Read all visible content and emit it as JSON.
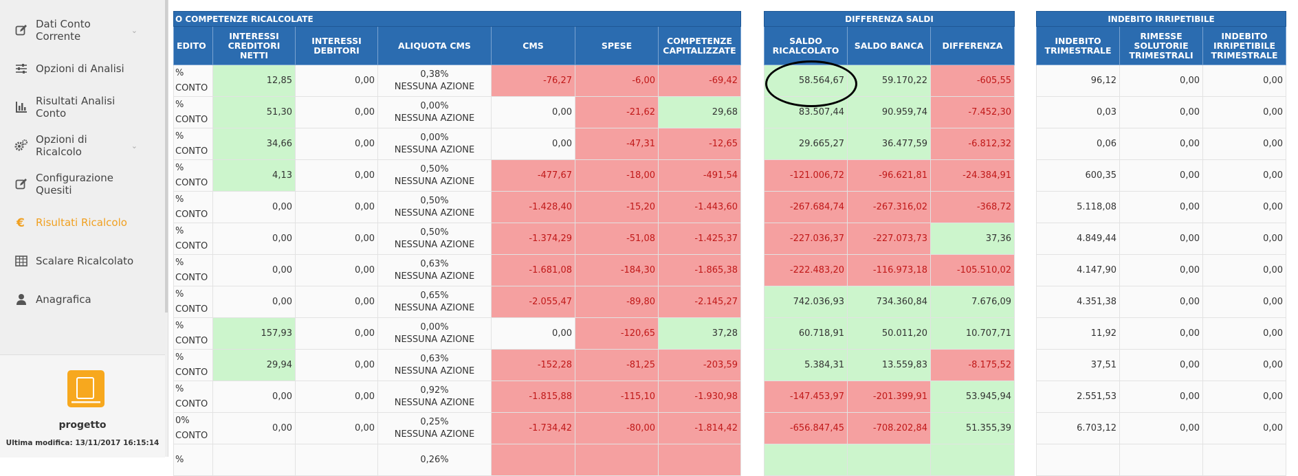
{
  "sidebar": {
    "items": [
      {
        "label": "Dati Conto Corrente",
        "icon": "edit-icon",
        "chevron": "⌄",
        "active": false
      },
      {
        "label": "Opzioni di Analisi",
        "icon": "sliders-icon",
        "chevron": "",
        "active": false
      },
      {
        "label": "Risultati Analisi Conto",
        "icon": "bar-chart-icon",
        "chevron": "",
        "active": false
      },
      {
        "label": "Opzioni di Ricalcolo",
        "icon": "gears-icon",
        "chevron": "⌄",
        "active": false
      },
      {
        "label": "Configurazione Quesiti",
        "icon": "edit-icon",
        "chevron": "",
        "active": false
      },
      {
        "label": "Risultati Ricalcolo",
        "icon": "euro-icon",
        "chevron": "",
        "active": true
      },
      {
        "label": "Scalare Ricalcolato",
        "icon": "table-icon",
        "chevron": "",
        "active": false
      },
      {
        "label": "Anagrafica",
        "icon": "user-icon",
        "chevron": "",
        "active": false
      }
    ],
    "project": {
      "name": "progetto",
      "last_modified": "Ultima modifica: 13/11/2017 16:15:14"
    }
  },
  "tables": {
    "competenze": {
      "band": "O COMPETENZE RICALCOLATE",
      "headers": [
        "EDITO",
        "INTERESSI CREDITORI NETTI",
        "INTERESSI DEBITORI",
        "ALIQUOTA CMS",
        "CMS",
        "SPESE",
        "COMPETENZE CAPITALIZZATE"
      ]
    },
    "differenza": {
      "band": "DIFFERENZA SALDI",
      "headers": [
        "SALDO RICALCOLATO",
        "SALDO BANCA",
        "DIFFERENZA"
      ]
    },
    "indebito": {
      "band": "INDEBITO IRRIPETIBILE",
      "headers": [
        "INDEBITO TRIMESTRALE",
        "RIMESSE SOLUTORIE TRIMESTRALI",
        "INDEBITO IRRIPETIBILE TRIMESTRALE"
      ]
    }
  },
  "rows": [
    {
      "p1": "%",
      "p2": "CONTO",
      "icn": "12,85",
      "icd": "0,00",
      "aliq": "0,38%",
      "az": "NESSUNA AZIONE",
      "cms": "-76,27",
      "spese": "-6,00",
      "comp": "-69,42",
      "saldo_r": "58.564,67",
      "saldo_b": "59.170,22",
      "diff": "-605,55",
      "ind": "96,12",
      "rim": "0,00",
      "irr": "0,00"
    },
    {
      "p1": "%",
      "p2": "CONTO",
      "icn": "51,30",
      "icd": "0,00",
      "aliq": "0,00%",
      "az": "NESSUNA AZIONE",
      "cms": "0,00",
      "spese": "-21,62",
      "comp": "29,68",
      "saldo_r": "83.507,44",
      "saldo_b": "90.959,74",
      "diff": "-7.452,30",
      "ind": "0,03",
      "rim": "0,00",
      "irr": "0,00"
    },
    {
      "p1": "%",
      "p2": "CONTO",
      "icn": "34,66",
      "icd": "0,00",
      "aliq": "0,00%",
      "az": "NESSUNA AZIONE",
      "cms": "0,00",
      "spese": "-47,31",
      "comp": "-12,65",
      "saldo_r": "29.665,27",
      "saldo_b": "36.477,59",
      "diff": "-6.812,32",
      "ind": "0,06",
      "rim": "0,00",
      "irr": "0,00"
    },
    {
      "p1": "%",
      "p2": "CONTO",
      "icn": "4,13",
      "icd": "0,00",
      "aliq": "0,50%",
      "az": "NESSUNA AZIONE",
      "cms": "-477,67",
      "spese": "-18,00",
      "comp": "-491,54",
      "saldo_r": "-121.006,72",
      "saldo_b": "-96.621,81",
      "diff": "-24.384,91",
      "ind": "600,35",
      "rim": "0,00",
      "irr": "0,00"
    },
    {
      "p1": "%",
      "p2": "CONTO",
      "icn": "0,00",
      "icd": "0,00",
      "aliq": "0,50%",
      "az": "NESSUNA AZIONE",
      "cms": "-1.428,40",
      "spese": "-15,20",
      "comp": "-1.443,60",
      "saldo_r": "-267.684,74",
      "saldo_b": "-267.316,02",
      "diff": "-368,72",
      "ind": "5.118,08",
      "rim": "0,00",
      "irr": "0,00"
    },
    {
      "p1": "%",
      "p2": "CONTO",
      "icn": "0,00",
      "icd": "0,00",
      "aliq": "0,50%",
      "az": "NESSUNA AZIONE",
      "cms": "-1.374,29",
      "spese": "-51,08",
      "comp": "-1.425,37",
      "saldo_r": "-227.036,37",
      "saldo_b": "-227.073,73",
      "diff": "37,36",
      "ind": "4.849,44",
      "rim": "0,00",
      "irr": "0,00"
    },
    {
      "p1": "%",
      "p2": "CONTO",
      "icn": "0,00",
      "icd": "0,00",
      "aliq": "0,63%",
      "az": "NESSUNA AZIONE",
      "cms": "-1.681,08",
      "spese": "-184,30",
      "comp": "-1.865,38",
      "saldo_r": "-222.483,20",
      "saldo_b": "-116.973,18",
      "diff": "-105.510,02",
      "ind": "4.147,90",
      "rim": "0,00",
      "irr": "0,00"
    },
    {
      "p1": "%",
      "p2": "CONTO",
      "icn": "0,00",
      "icd": "0,00",
      "aliq": "0,65%",
      "az": "NESSUNA AZIONE",
      "cms": "-2.055,47",
      "spese": "-89,80",
      "comp": "-2.145,27",
      "saldo_r": "742.036,93",
      "saldo_b": "734.360,84",
      "diff": "7.676,09",
      "ind": "4.351,38",
      "rim": "0,00",
      "irr": "0,00"
    },
    {
      "p1": "%",
      "p2": "CONTO",
      "icn": "157,93",
      "icd": "0,00",
      "aliq": "0,00%",
      "az": "NESSUNA AZIONE",
      "cms": "0,00",
      "spese": "-120,65",
      "comp": "37,28",
      "saldo_r": "60.718,91",
      "saldo_b": "50.011,20",
      "diff": "10.707,71",
      "ind": "11,92",
      "rim": "0,00",
      "irr": "0,00"
    },
    {
      "p1": "%",
      "p2": "CONTO",
      "icn": "29,94",
      "icd": "0,00",
      "aliq": "0,63%",
      "az": "NESSUNA AZIONE",
      "cms": "-152,28",
      "spese": "-81,25",
      "comp": "-203,59",
      "saldo_r": "5.384,31",
      "saldo_b": "13.559,83",
      "diff": "-8.175,52",
      "ind": "37,51",
      "rim": "0,00",
      "irr": "0,00"
    },
    {
      "p1": "%",
      "p2": "CONTO",
      "icn": "0,00",
      "icd": "0,00",
      "aliq": "0,92%",
      "az": "NESSUNA AZIONE",
      "cms": "-1.815,88",
      "spese": "-115,10",
      "comp": "-1.930,98",
      "saldo_r": "-147.453,97",
      "saldo_b": "-201.399,91",
      "diff": "53.945,94",
      "ind": "2.551,53",
      "rim": "0,00",
      "irr": "0,00"
    },
    {
      "p1": "0%",
      "p2": "CONTO",
      "icn": "0,00",
      "icd": "0,00",
      "aliq": "0,25%",
      "az": "NESSUNA AZIONE",
      "cms": "-1.734,42",
      "spese": "-80,00",
      "comp": "-1.814,42",
      "saldo_r": "-656.847,45",
      "saldo_b": "-708.202,84",
      "diff": "51.355,39",
      "ind": "6.703,12",
      "rim": "0,00",
      "irr": "0,00"
    },
    {
      "p1": "%",
      "p2": "",
      "icn": "",
      "icd": "",
      "aliq": "0,26%",
      "az": "",
      "cms": "",
      "spese": "",
      "comp": "",
      "saldo_r": "",
      "saldo_b": "",
      "diff": "",
      "ind": "",
      "rim": "",
      "irr": ""
    }
  ],
  "colors": {
    "header_blue": "#2b6cb0",
    "positive_green": "#ccf5cc",
    "negative_red": "#f5a0a0",
    "active_orange": "#f0a020"
  }
}
